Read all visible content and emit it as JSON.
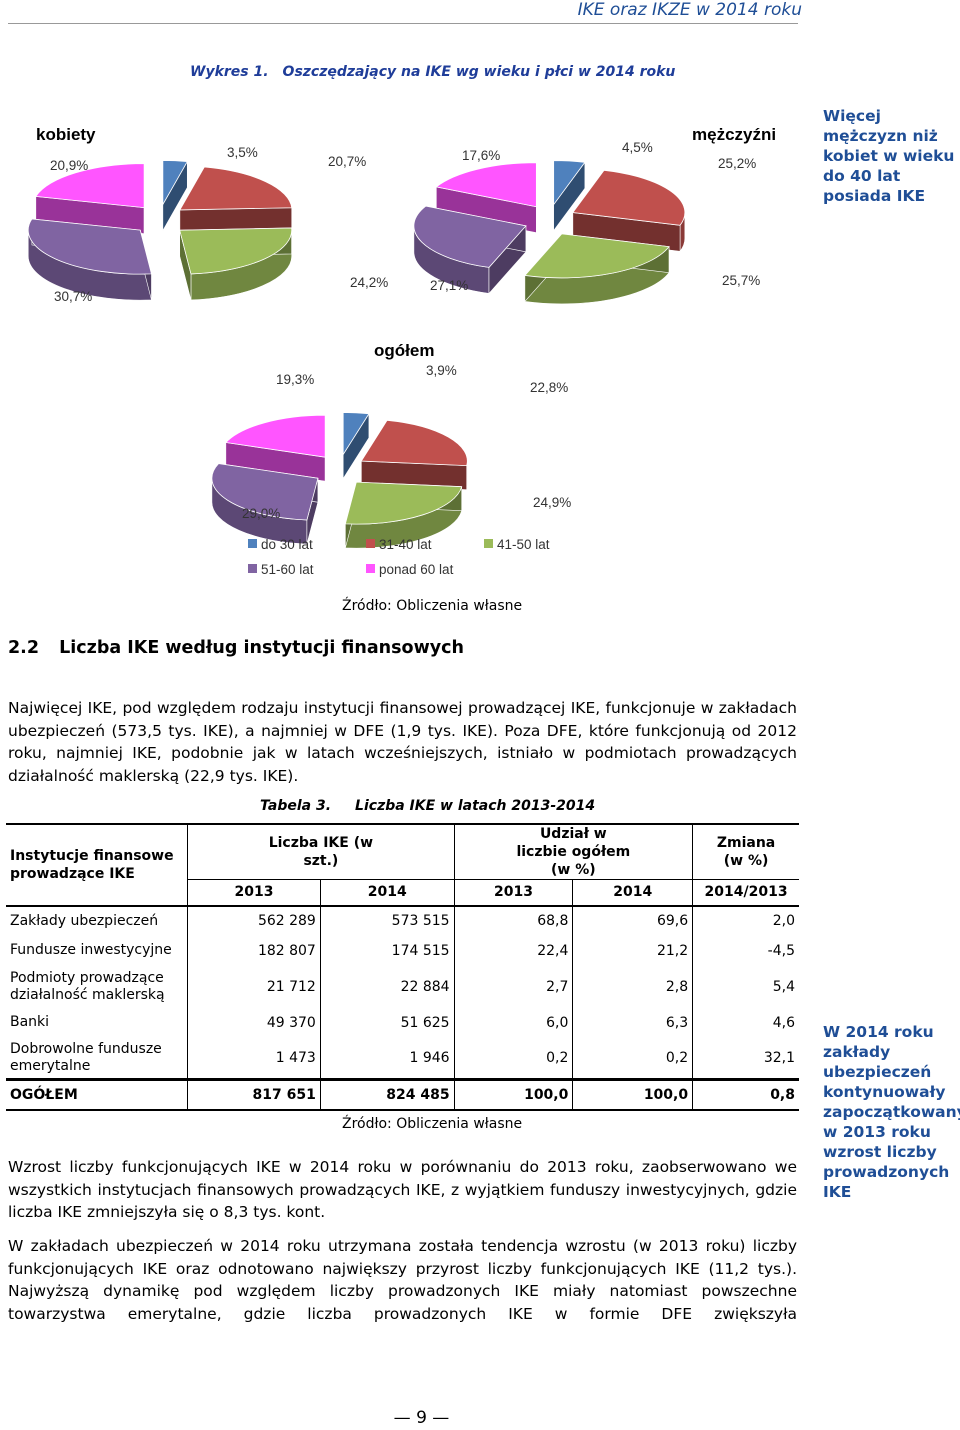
{
  "header": {
    "title": "IKE oraz IKZE w 2014 roku"
  },
  "figure": {
    "label": "Wykres 1.",
    "title": "Oszczędzający na IKE wg wieku i płci w 2014 roku",
    "source": "Źródło: Obliczenia własne"
  },
  "chart_data": {
    "type": "pie",
    "categories": [
      "do 30 lat",
      "31-40 lat",
      "41-50 lat",
      "51-60 lat",
      "ponad 60 lat"
    ],
    "colors": [
      "#4f81bd",
      "#c0504d",
      "#9bbb59",
      "#8064a2",
      "#ff55ff"
    ],
    "charts": [
      {
        "title": "kobiety",
        "values": [
          3.5,
          20.7,
          24.2,
          30.7,
          20.9
        ],
        "labels": [
          "3,5%",
          "20,7%",
          "24,2%",
          "30,7%",
          "20,9%"
        ]
      },
      {
        "title": "mężczyźni",
        "values": [
          4.5,
          25.2,
          25.7,
          27.1,
          17.6
        ],
        "labels": [
          "4,5%",
          "25,2%",
          "25,7%",
          "27,1%",
          "17,6%"
        ]
      },
      {
        "title": "ogółem",
        "values": [
          3.9,
          22.8,
          24.9,
          29.0,
          19.3
        ],
        "labels": [
          "3,9%",
          "22,8%",
          "24,9%",
          "29,0%",
          "19,3%"
        ]
      }
    ],
    "legend_placement": "bottom"
  },
  "sidenote1": "Więcej mężczyzn niż kobiet w wieku do 40 lat posiada IKE",
  "section": {
    "number": "2.2",
    "title": "Liczba IKE według instytucji finansowych"
  },
  "paragraph1": "Najwięcej IKE, pod względem rodzaju instytucji finansowej prowadzącej IKE, funkcjonuje w zakładach ubezpieczeń (573,5 tys. IKE), a najmniej w DFE (1,9 tys. IKE). Poza DFE, które funkcjonują od 2012 roku, najmniej IKE, podobnie jak w latach wcześniejszych, istniało w podmiotach prowadzących działalność maklerską (22,9 tys. IKE).",
  "table": {
    "label": "Tabela 3.",
    "title": "Liczba IKE w latach 2013-2014",
    "head": {
      "institutions": "Instytucje finansowe prowadzące IKE",
      "count": "Liczba IKE (w szt.)",
      "share": "Udział w liczbie ogółem (w %)",
      "change": "Zmiana (w %)",
      "y2013a": "2013",
      "y2014a": "2014",
      "y2013b": "2013",
      "y2014b": "2014",
      "yc": "2014/2013"
    },
    "rows": [
      {
        "name": "Zakłady ubezpieczeń",
        "c2013": "562 289",
        "c2014": "573 515",
        "s2013": "68,8",
        "s2014": "69,6",
        "chg": "2,0"
      },
      {
        "name": "Fundusze inwestycyjne",
        "c2013": "182 807",
        "c2014": "174 515",
        "s2013": "22,4",
        "s2014": "21,2",
        "chg": "-4,5"
      },
      {
        "name": "Podmioty prowadzące działalność maklerską",
        "c2013": "21 712",
        "c2014": "22 884",
        "s2013": "2,7",
        "s2014": "2,8",
        "chg": "5,4"
      },
      {
        "name": "Banki",
        "c2013": "49 370",
        "c2014": "51 625",
        "s2013": "6,0",
        "s2014": "6,3",
        "chg": "4,6"
      },
      {
        "name": "Dobrowolne fundusze emerytalne",
        "c2013": "1 473",
        "c2014": "1 946",
        "s2013": "0,2",
        "s2014": "0,2",
        "chg": "32,1"
      }
    ],
    "total": {
      "name": "OGÓŁEM",
      "c2013": "817 651",
      "c2014": "824 485",
      "s2013": "100,0",
      "s2014": "100,0",
      "chg": "0,8"
    },
    "source": "Źródło: Obliczenia własne"
  },
  "sidenote2": "W 2014 roku zakłady ubezpieczeń kontynuowały zapoczątkowany w 2013 roku wzrost liczby prowadzonych IKE",
  "paragraph2": "Wzrost liczby funkcjonujących IKE w 2014 roku w porównaniu do 2013 roku, zaobserwowano we wszystkich instytucjach finansowych prowadzących IKE, z wyjątkiem funduszy inwestycyjnych, gdzie liczba IKE zmniejszyła się o 8,3 tys. kont.",
  "paragraph3": "W zakładach ubezpieczeń w 2014 roku utrzymana została tendencja wzrostu (w 2013 roku) liczby funkcjonujących IKE oraz odnotowano największy przyrost liczby funkcjonujących IKE (11,2 tys.). Najwyższą dynamikę pod względem liczby prowadzonych IKE miały natomiast powszechne towarzystwa emerytalne, gdzie liczba prowadzonych IKE w formie DFE zwiększyła",
  "page_number": "9"
}
